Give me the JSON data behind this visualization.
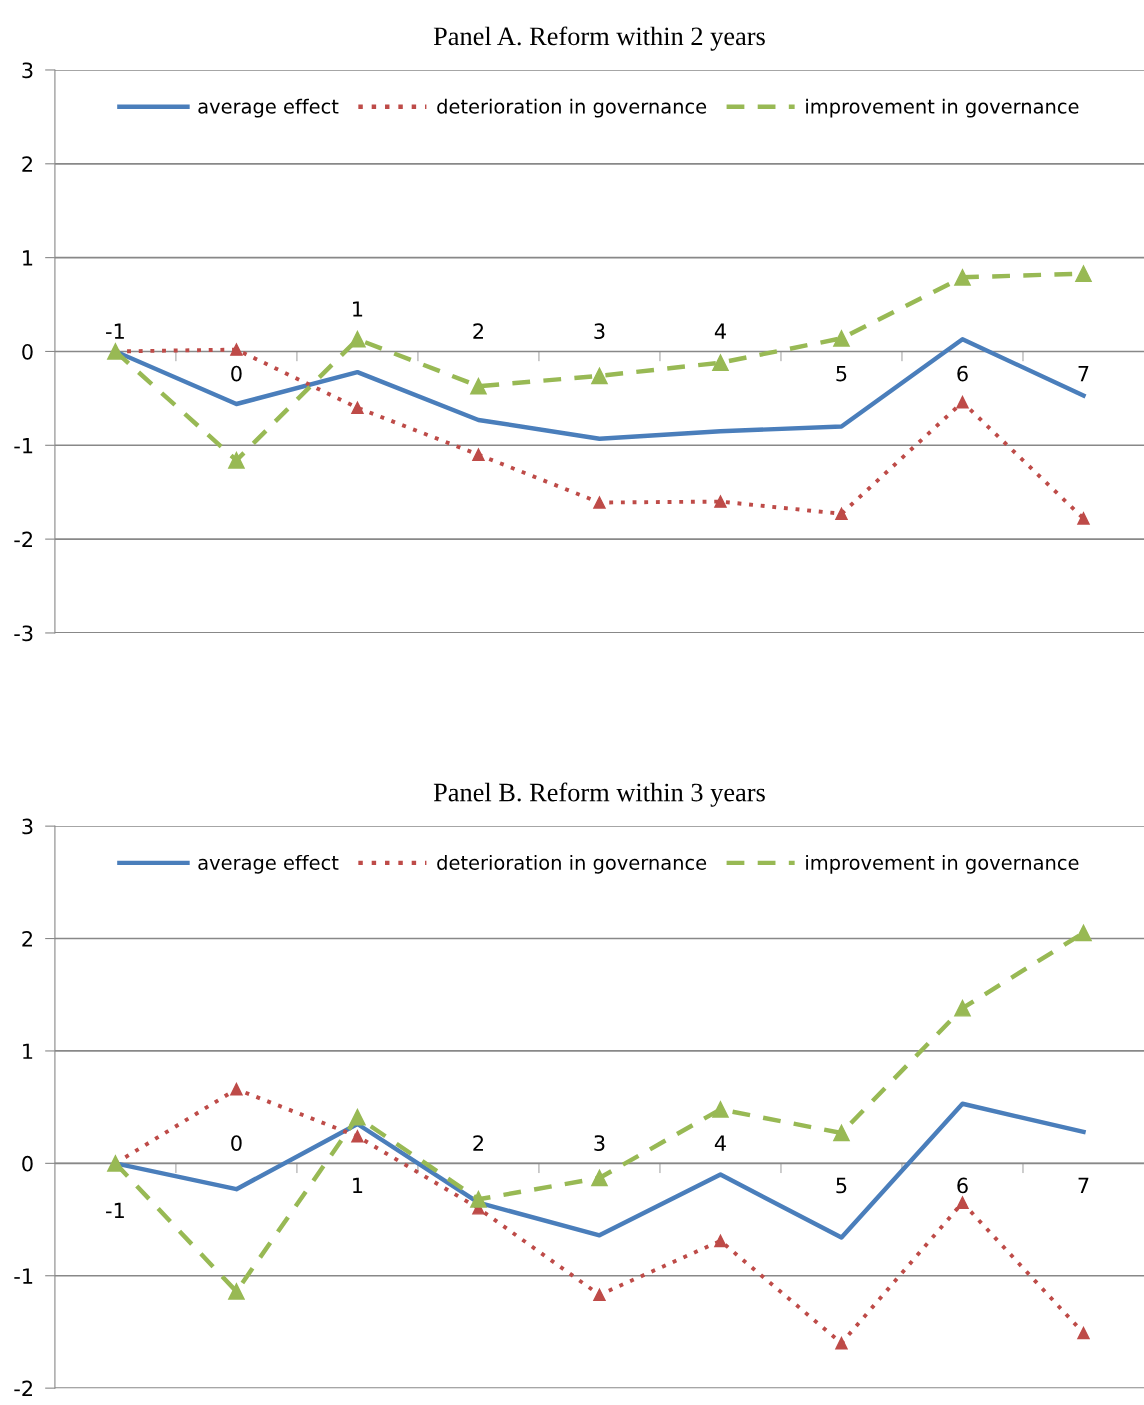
{
  "chart_data": [
    {
      "type": "line",
      "title": "Panel A. Reform within 2 years",
      "categories": [
        "-1",
        "0",
        "1",
        "2",
        "3",
        "4",
        "5",
        "6",
        "7"
      ],
      "ylim": [
        -3,
        3
      ],
      "yticks": [
        -3,
        -2,
        -1,
        0,
        1,
        2,
        3
      ],
      "grid": "y",
      "legend": "top",
      "series": [
        {
          "name": "average effect",
          "color": "#4a7ebb",
          "line_style": "solid",
          "marker": "none",
          "values": [
            0,
            -0.56,
            -0.22,
            -0.73,
            -0.93,
            -0.85,
            -0.8,
            0.13,
            -0.47
          ]
        },
        {
          "name": "deterioration in governance",
          "color": "#be4b48",
          "line_style": "dotted",
          "marker": "triangle",
          "values": [
            0,
            0.02,
            -0.6,
            -1.1,
            -1.61,
            -1.6,
            -1.73,
            -0.54,
            -1.78
          ]
        },
        {
          "name": "improvement in governance",
          "color": "#98b954",
          "line_style": "dashed",
          "marker": "triangle",
          "values": [
            0,
            -1.16,
            0.13,
            -0.37,
            -0.26,
            -0.12,
            0.14,
            0.79,
            0.83
          ]
        }
      ]
    },
    {
      "type": "line",
      "title": "Panel B. Reform within 3 years",
      "categories": [
        "-1",
        "0",
        "1",
        "2",
        "3",
        "4",
        "5",
        "6",
        "7"
      ],
      "ylim": [
        -2,
        3
      ],
      "yticks": [
        -2,
        -1,
        0,
        1,
        2,
        3
      ],
      "grid": "y",
      "legend": "top",
      "series": [
        {
          "name": "average effect",
          "color": "#4a7ebb",
          "line_style": "solid",
          "marker": "none",
          "values": [
            0,
            -0.23,
            0.35,
            -0.35,
            -0.64,
            -0.1,
            -0.66,
            0.53,
            0.28
          ]
        },
        {
          "name": "deterioration in governance",
          "color": "#be4b48",
          "line_style": "dotted",
          "marker": "triangle",
          "values": [
            0,
            0.66,
            0.24,
            -0.4,
            -1.17,
            -0.69,
            -1.6,
            -0.35,
            -1.51
          ]
        },
        {
          "name": "improvement in governance",
          "color": "#98b954",
          "line_style": "dashed",
          "marker": "triangle",
          "values": [
            0,
            -1.14,
            0.41,
            -0.32,
            -0.13,
            0.48,
            0.27,
            1.38,
            2.05
          ]
        }
      ]
    }
  ]
}
